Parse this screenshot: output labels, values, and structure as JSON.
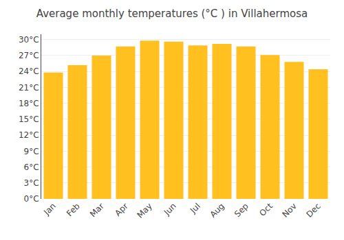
{
  "chart_data": {
    "type": "bar",
    "title": "Average monthly temperatures (°C ) in Villahermosa",
    "categories": [
      "Jan",
      "Feb",
      "Mar",
      "Apr",
      "May",
      "Jun",
      "Jul",
      "Aug",
      "Sep",
      "Oct",
      "Nov",
      "Dec"
    ],
    "values": [
      23.8,
      25.2,
      27.0,
      28.7,
      29.8,
      29.6,
      28.9,
      29.2,
      28.7,
      27.1,
      25.8,
      24.4
    ],
    "color": "#FFC020",
    "ylim": [
      0,
      31
    ],
    "yticks": [
      {
        "value": 0,
        "label": "0°C"
      },
      {
        "value": 3,
        "label": "3°C"
      },
      {
        "value": 6,
        "label": "6°C"
      },
      {
        "value": 9,
        "label": "9°C"
      },
      {
        "value": 12,
        "label": "12°C"
      },
      {
        "value": 15,
        "label": "15°C"
      },
      {
        "value": 18,
        "label": "18°C"
      },
      {
        "value": 21,
        "label": "21°C"
      },
      {
        "value": 24,
        "label": "24°C"
      },
      {
        "value": 27,
        "label": "27°C"
      },
      {
        "value": 30,
        "label": "30°C"
      }
    ],
    "grid": true
  }
}
